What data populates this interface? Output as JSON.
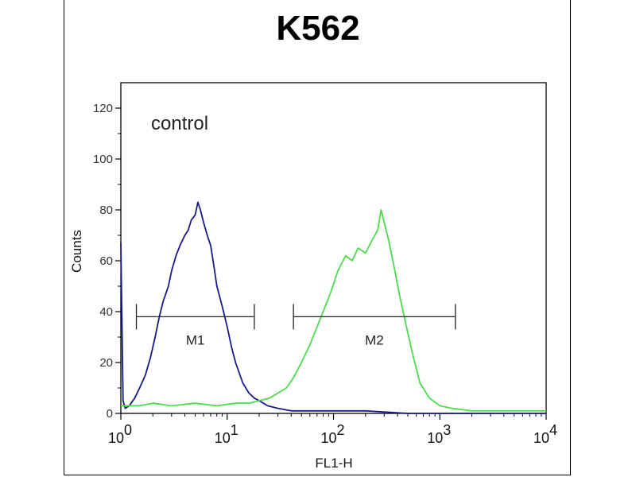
{
  "chart_data": {
    "type": "line",
    "title": "K562",
    "xlabel": "FL1-H",
    "ylabel": "Counts",
    "xscale": "log",
    "xlim": [
      1,
      10000
    ],
    "ylim": [
      0,
      130
    ],
    "x_ticks": [
      {
        "base": "10",
        "exp": "0"
      },
      {
        "base": "10",
        "exp": "1"
      },
      {
        "base": "10",
        "exp": "2"
      },
      {
        "base": "10",
        "exp": "3"
      },
      {
        "base": "10",
        "exp": "4"
      }
    ],
    "y_ticks": [
      0,
      20,
      40,
      60,
      80,
      100,
      120
    ],
    "annotations": [
      {
        "text": "control"
      }
    ],
    "gates": [
      {
        "label": "M1",
        "x_range": [
          1.4,
          18
        ],
        "y": 38
      },
      {
        "label": "M2",
        "x_range": [
          42,
          1400
        ],
        "y": 38
      }
    ],
    "series": [
      {
        "color": "#1a1a8c",
        "x": [
          1,
          1.05,
          1.1,
          1.2,
          1.35,
          1.5,
          1.7,
          1.9,
          2.1,
          2.3,
          2.5,
          2.8,
          3.0,
          3.3,
          3.6,
          4.0,
          4.3,
          4.6,
          5.0,
          5.3,
          5.6,
          6.0,
          6.5,
          7.0,
          7.5,
          8.0,
          9.0,
          10,
          11,
          12,
          14,
          16,
          18,
          20,
          24,
          30,
          40,
          60,
          100,
          200,
          500,
          1000,
          3000,
          10000
        ],
        "y": [
          67,
          5,
          2,
          3,
          6,
          10,
          15,
          22,
          30,
          38,
          44,
          50,
          56,
          62,
          66,
          70,
          72,
          76,
          78,
          83,
          80,
          75,
          70,
          66,
          58,
          50,
          42,
          34,
          26,
          20,
          12,
          8,
          6,
          5,
          3,
          2,
          1,
          1,
          1,
          1,
          0,
          0,
          0,
          0
        ]
      },
      {
        "color": "#4ddb4d",
        "x": [
          1,
          1.5,
          2,
          3,
          5,
          8,
          12,
          16,
          20,
          25,
          30,
          36,
          42,
          50,
          60,
          70,
          80,
          95,
          110,
          130,
          150,
          170,
          200,
          230,
          260,
          280,
          300,
          330,
          370,
          420,
          480,
          550,
          650,
          800,
          1000,
          1300,
          2000,
          4000,
          10000
        ],
        "y": [
          3,
          3,
          4,
          3,
          4,
          3,
          4,
          4,
          5,
          6,
          8,
          10,
          14,
          20,
          27,
          34,
          40,
          48,
          56,
          62,
          60,
          65,
          63,
          68,
          72,
          80,
          75,
          68,
          58,
          46,
          35,
          24,
          12,
          6,
          3,
          2,
          1,
          1,
          1
        ]
      }
    ]
  }
}
